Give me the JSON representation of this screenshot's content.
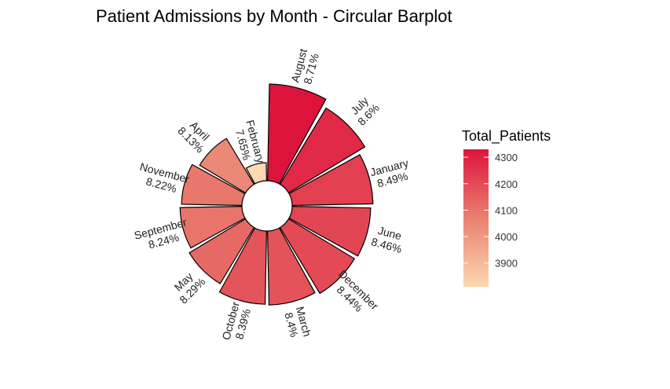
{
  "chart_data": {
    "type": "bar",
    "subtype": "circular-barplot",
    "title": "Patient Admissions by Month - Circular Barplot",
    "categories": [
      "August",
      "July",
      "January",
      "June",
      "December",
      "March",
      "October",
      "May",
      "September",
      "November",
      "April",
      "February"
    ],
    "values": [
      4330,
      4280,
      4225,
      4210,
      4200,
      4180,
      4175,
      4125,
      4100,
      4090,
      4045,
      3810
    ],
    "percent_labels": [
      "8.71%",
      "8.6%",
      "8.49%",
      "8.46%",
      "8.44%",
      "8.4%",
      "8.39%",
      "8.29%",
      "8.24%",
      "8.22%",
      "8.13%",
      "7.65%"
    ],
    "legend": {
      "title": "Total_Patients",
      "placement": "right",
      "ticks": [
        "4300",
        "4200",
        "4100",
        "4000",
        "3900"
      ],
      "tick_values": [
        4300,
        4200,
        4100,
        4000,
        3900
      ],
      "range": [
        3810,
        4330
      ]
    },
    "colors": {
      "low": "#fdd8b0",
      "mid": "#ea8070",
      "high": "#dc143c",
      "stroke": "#000000"
    },
    "grid": false
  }
}
